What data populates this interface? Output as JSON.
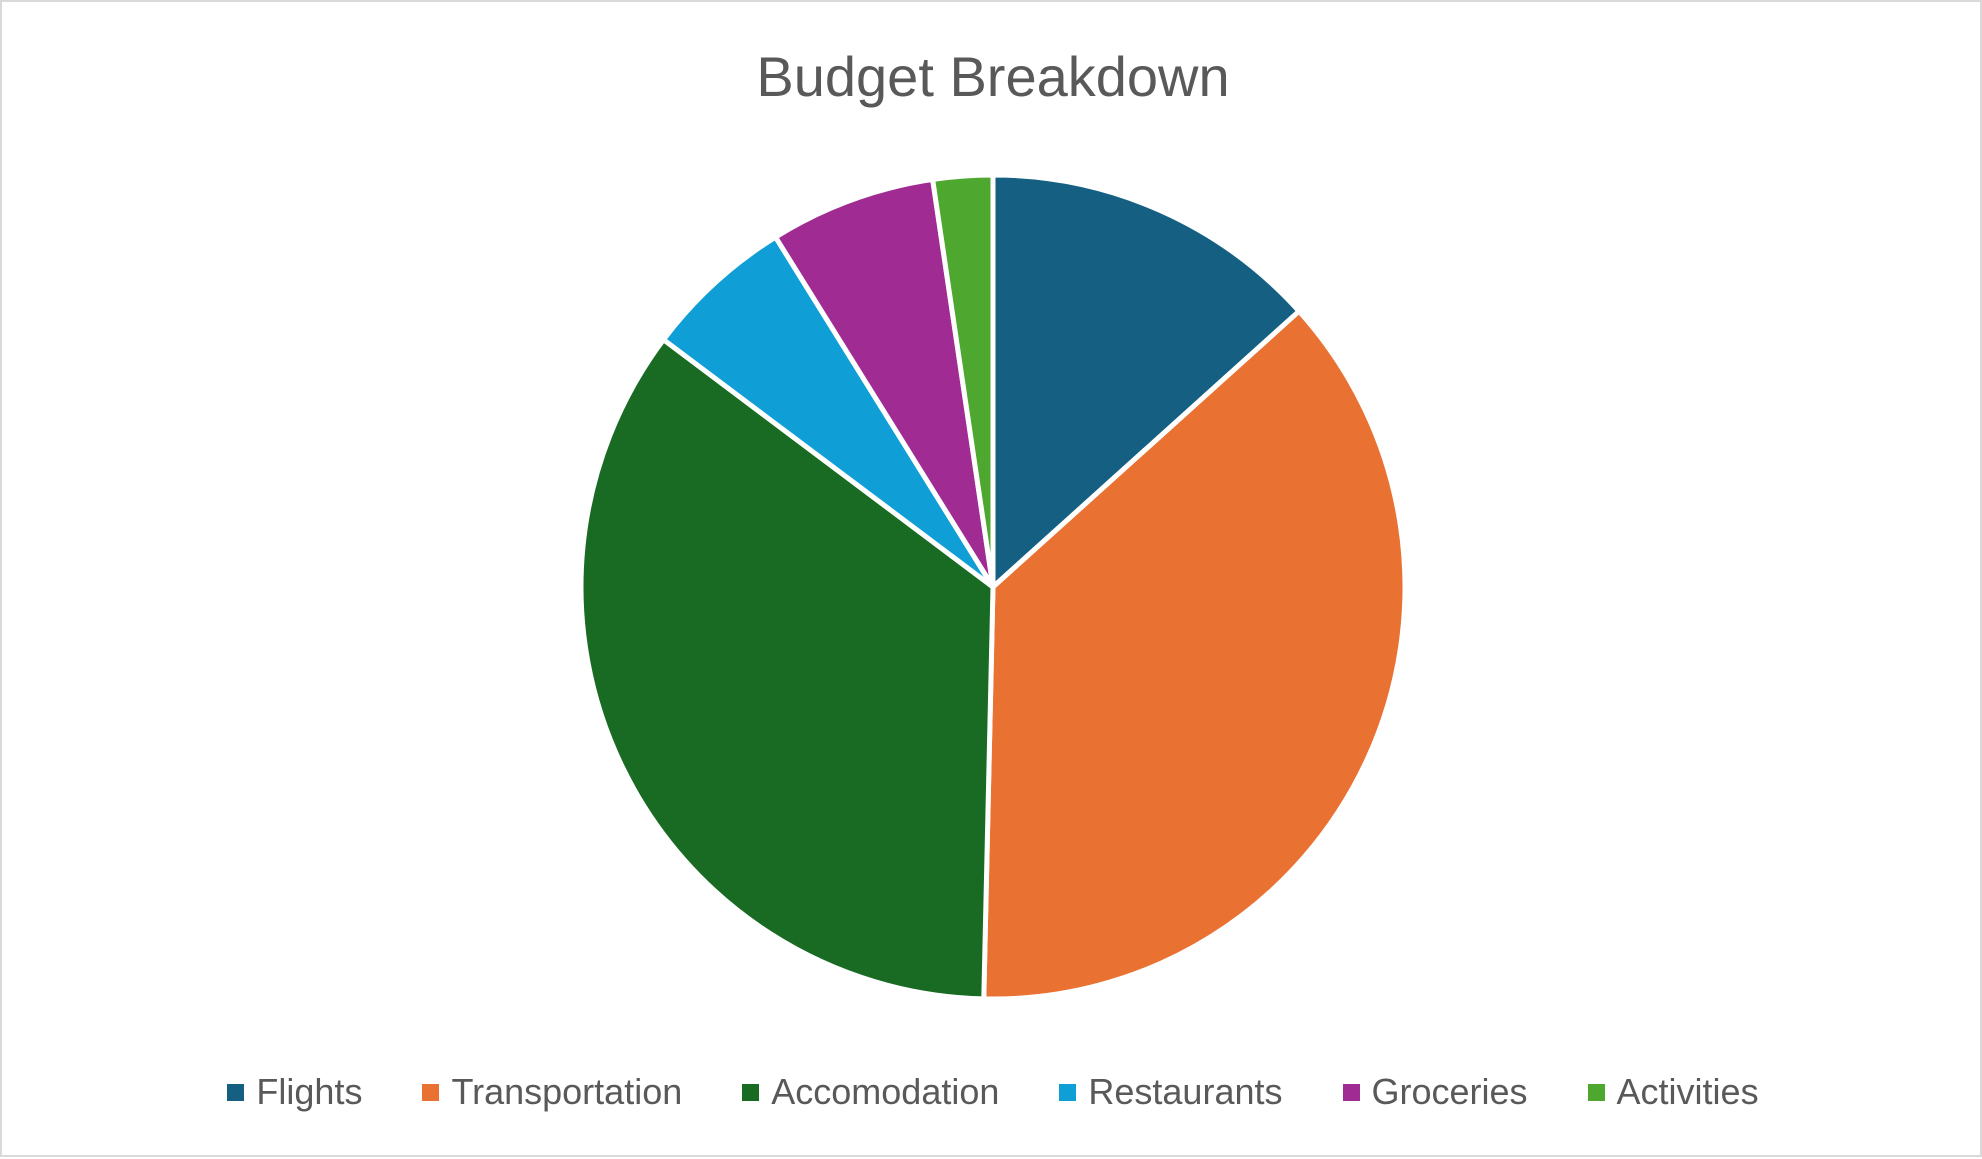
{
  "chart_data": {
    "type": "pie",
    "title": "Budget Breakdown",
    "categories": [
      "Flights",
      "Transportation",
      "Accomodation",
      "Restaurants",
      "Groceries",
      "Activities"
    ],
    "values": [
      13.1,
      36.4,
      34.3,
      5.8,
      6.4,
      2.3
    ],
    "value_unit": "percent of total",
    "start_angle_deg": 0,
    "direction": "clockwise",
    "colors": [
      "#156082",
      "#E97132",
      "#196B24",
      "#0F9ED5",
      "#A02B93",
      "#4EA72E"
    ],
    "legend_position": "bottom"
  }
}
